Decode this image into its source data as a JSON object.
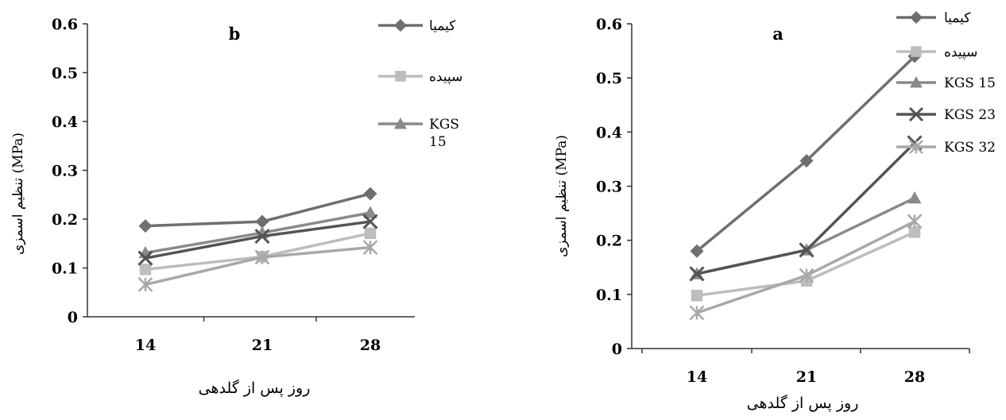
{
  "chart_data": [
    {
      "type": "line",
      "title": "b",
      "xlabel": "روز پس از گلدهی",
      "ylabel": "تنظیم اسمزی (MPa)",
      "categories": [
        "14",
        "21",
        "28"
      ],
      "ylim": [
        0,
        0.6
      ],
      "yticks": [
        "0",
        "0.1",
        "0.2",
        "0.3",
        "0.4",
        "0.5",
        "0.6"
      ],
      "grid": false,
      "legend_position": "top-right",
      "series": [
        {
          "name": "کیمیا",
          "values": [
            0.186,
            0.195,
            0.252
          ],
          "color": "#6f6f6f",
          "marker": "diamond"
        },
        {
          "name": "سپیده",
          "values": [
            0.097,
            0.123,
            0.171
          ],
          "color": "#bdbdbd",
          "marker": "square"
        },
        {
          "name": "KGS 15",
          "values": [
            0.131,
            0.172,
            0.213
          ],
          "color": "#8a8a8a",
          "marker": "triangle"
        },
        {
          "name": "",
          "values": [
            0.12,
            0.165,
            0.195
          ],
          "color": "#545454",
          "marker": "x"
        },
        {
          "name": "",
          "values": [
            0.066,
            0.122,
            0.142
          ],
          "color": "#a8a8a8",
          "marker": "star"
        }
      ],
      "legend": [
        "کیمیا",
        "سپیده",
        "KGS 15"
      ]
    },
    {
      "type": "line",
      "title": "a",
      "xlabel": "روز پس از گلدهی",
      "ylabel": "تنظیم اسمزی (MPa)",
      "categories": [
        "14",
        "21",
        "28"
      ],
      "ylim": [
        0,
        0.6
      ],
      "yticks": [
        "0",
        "0.1",
        "0.2",
        "0.3",
        "0.4",
        "0.5",
        "0.6"
      ],
      "grid": false,
      "legend_position": "top-right",
      "series": [
        {
          "name": "کیمیا",
          "values": [
            0.18,
            0.347,
            0.54
          ],
          "color": "#6f6f6f",
          "marker": "diamond"
        },
        {
          "name": "سپیده",
          "values": [
            0.098,
            0.125,
            0.215
          ],
          "color": "#bdbdbd",
          "marker": "square"
        },
        {
          "name": "KGS 15",
          "values": [
            0.138,
            0.182,
            0.278
          ],
          "color": "#8a8a8a",
          "marker": "triangle"
        },
        {
          "name": "KGS 23",
          "values": [
            0.138,
            0.182,
            0.38
          ],
          "color": "#545454",
          "marker": "x"
        },
        {
          "name": "KGS 32",
          "values": [
            0.066,
            0.135,
            0.235
          ],
          "color": "#a8a8a8",
          "marker": "star"
        }
      ],
      "legend": [
        "کیمیا",
        "سپیده",
        "KGS 15",
        "KGS 23",
        "KGS 32"
      ]
    }
  ]
}
